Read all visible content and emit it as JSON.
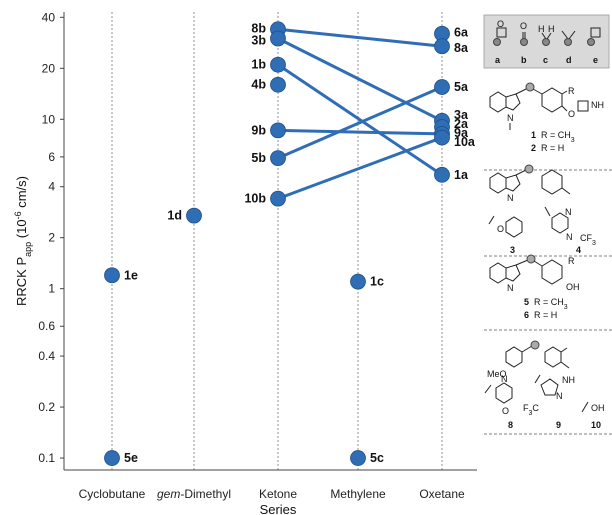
{
  "chart_data": {
    "type": "scatter",
    "x_categories": [
      "Cyclobutane",
      "gem-Dimethyl",
      "Ketone",
      "Methylene",
      "Oxetane"
    ],
    "x_category_prefix_italic": "gem",
    "x_category_suffix": "-Dimethyl",
    "xlabel": "Series",
    "ylabel_main": "RRCK P",
    "ylabel_sub": "app",
    "ylabel_units": "(10",
    "ylabel_exp": "-6",
    "ylabel_units_end": " cm/s)",
    "yscale": "log",
    "ylim": [
      0.085,
      43
    ],
    "yticks": [
      0.1,
      0.2,
      0.4,
      0.6,
      1,
      2,
      4,
      6,
      10,
      20,
      40
    ],
    "ytick_labels": [
      "0.1",
      "0.2",
      "0.4",
      "0.6",
      "1",
      "2",
      "4",
      "6",
      "10",
      "20",
      "40"
    ],
    "marker_color": "#2f6db5",
    "points": [
      {
        "label": "1e",
        "category": "Cyclobutane",
        "y": 1.2
      },
      {
        "label": "5e",
        "category": "Cyclobutane",
        "y": 0.1
      },
      {
        "label": "1d",
        "category": "gem-Dimethyl",
        "y": 2.7
      },
      {
        "label": "8b",
        "category": "Ketone",
        "y": 34
      },
      {
        "label": "3b",
        "category": "Ketone",
        "y": 30
      },
      {
        "label": "1b",
        "category": "Ketone",
        "y": 21
      },
      {
        "label": "4b",
        "category": "Ketone",
        "y": 16
      },
      {
        "label": "9b",
        "category": "Ketone",
        "y": 8.6
      },
      {
        "label": "5b",
        "category": "Ketone",
        "y": 5.9
      },
      {
        "label": "10b",
        "category": "Ketone",
        "y": 3.4
      },
      {
        "label": "1c",
        "category": "Methylene",
        "y": 1.1
      },
      {
        "label": "5c",
        "category": "Methylene",
        "y": 0.1
      },
      {
        "label": "6a",
        "category": "Oxetane",
        "y": 32
      },
      {
        "label": "8a",
        "category": "Oxetane",
        "y": 27
      },
      {
        "label": "5a",
        "category": "Oxetane",
        "y": 15.5
      },
      {
        "label": "3a",
        "category": "Oxetane",
        "y": 9.8
      },
      {
        "label": "2a",
        "category": "Oxetane",
        "y": 9.0
      },
      {
        "label": "9a",
        "category": "Oxetane",
        "y": 8.2
      },
      {
        "label": "10a",
        "category": "Oxetane",
        "y": 7.8
      },
      {
        "label": "1a",
        "category": "Oxetane",
        "y": 4.7
      }
    ],
    "connections": [
      [
        "8b",
        "8a"
      ],
      [
        "3b",
        "3a"
      ],
      [
        "1b",
        "1a"
      ],
      [
        "9b",
        "9a"
      ],
      [
        "5b",
        "5a"
      ],
      [
        "10b",
        "10a"
      ]
    ],
    "grid": "vertical dotted lines at categories"
  },
  "structures": {
    "legend_letters": [
      "a",
      "b",
      "c",
      "d",
      "e"
    ],
    "legend_h": "H",
    "legend_o": "O",
    "r_label": "R",
    "nh_label": "NH",
    "n_label": "N",
    "o_label": "O",
    "oh_label": "OH",
    "meo_label": "MeO",
    "cf3_label": "CF",
    "cf3_sub": "3",
    "f3c_label": "F",
    "f3c_sub": "3",
    "f3c_c": "C",
    "compound_1": "1",
    "compound_1_text": "R = CH",
    "compound_1_sub": "3",
    "compound_2": "2",
    "compound_2_text": "R = H",
    "compound_3": "3",
    "compound_4": "4",
    "compound_5": "5",
    "compound_5_text": "R = CH",
    "compound_5_sub": "3",
    "compound_6": "6",
    "compound_6_text": "R = H",
    "compound_8": "8",
    "compound_9": "9",
    "compound_10": "10"
  }
}
